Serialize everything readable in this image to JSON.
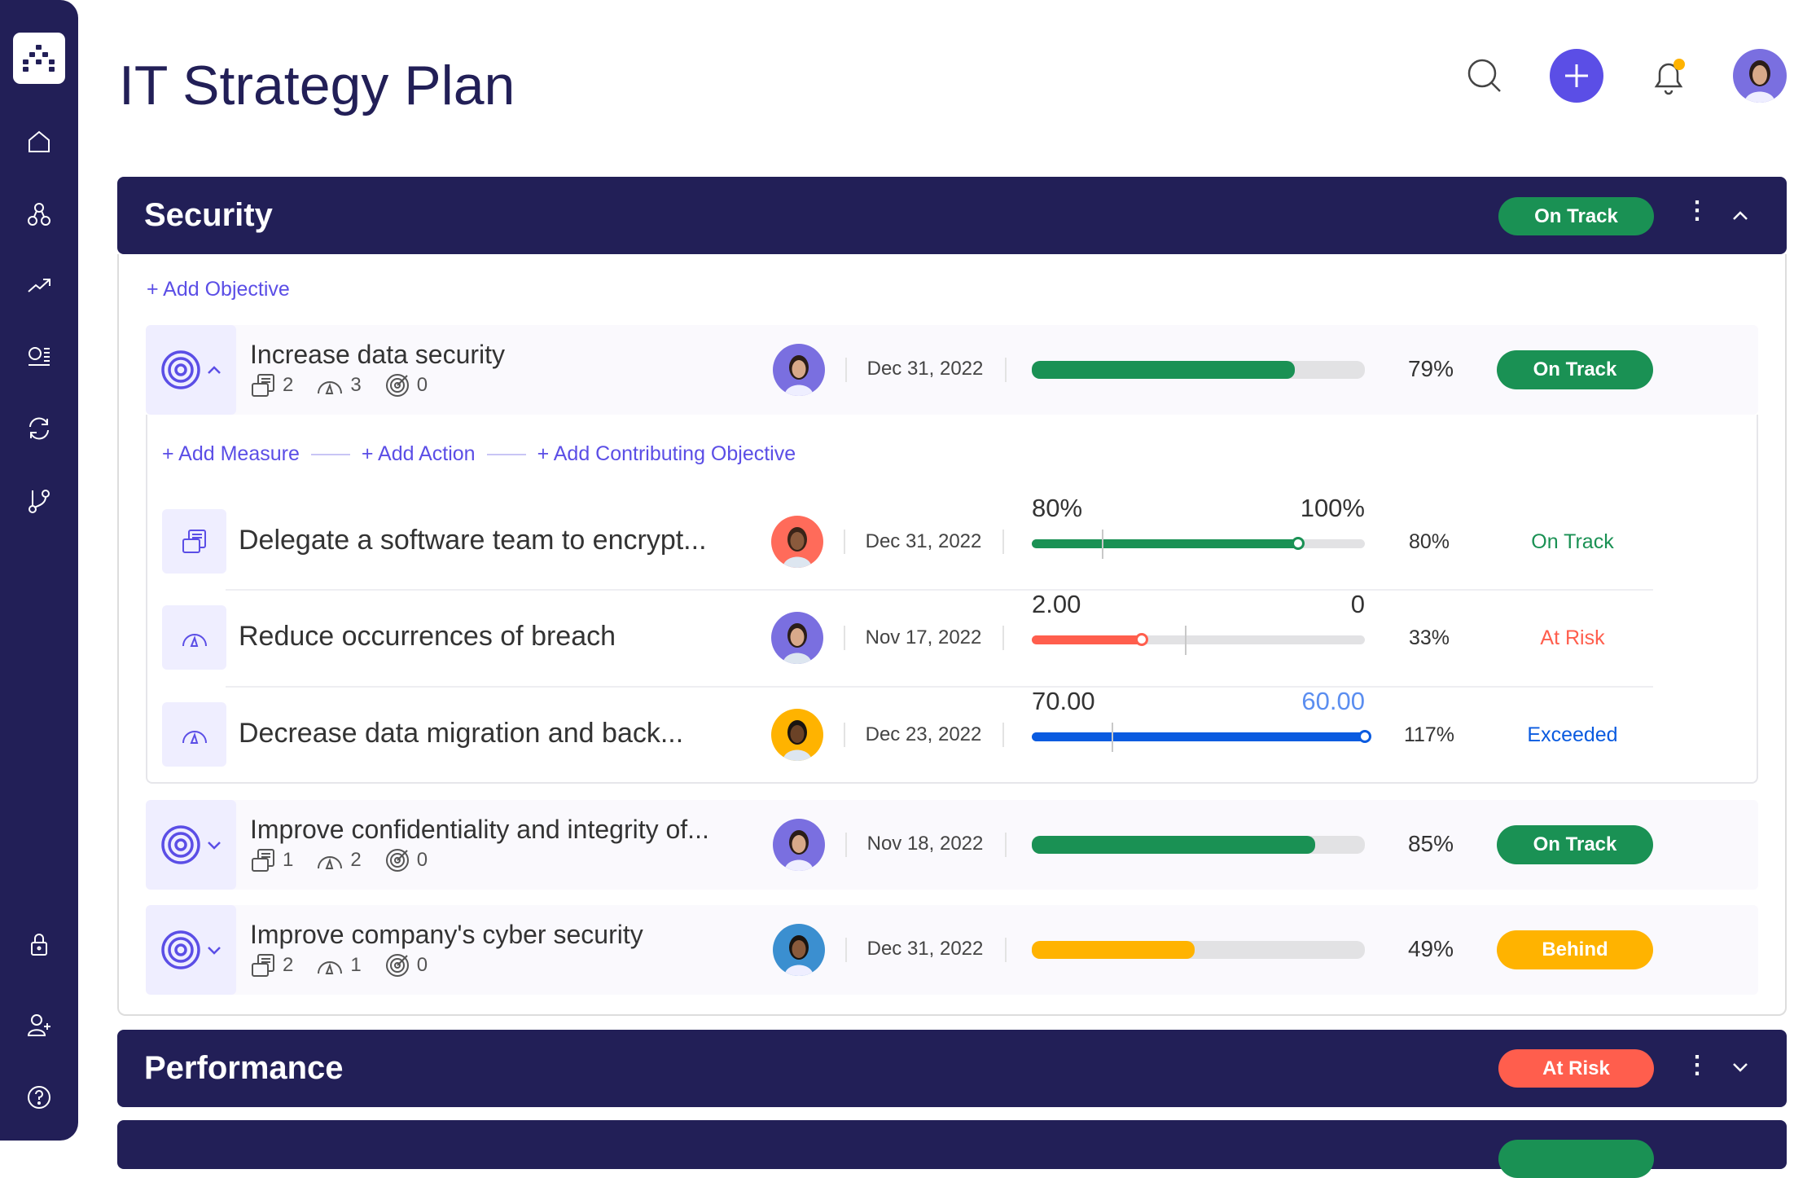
{
  "page_title": "IT Strategy Plan",
  "colors": {
    "navy": "#221f57",
    "accent": "#5b4ee6",
    "green": "#1a9154",
    "red": "#ff5e4d",
    "yellow": "#ffb300",
    "blue": "#0a5be0"
  },
  "sidebar": {
    "items": [
      "home-icon",
      "network-icon",
      "trending-icon",
      "list-icon",
      "refresh-icon",
      "branch-icon",
      "lock-icon",
      "add-user-icon",
      "help-icon"
    ]
  },
  "sections": [
    {
      "title": "Security",
      "status": "On Track",
      "add_objective": "+ Add Objective",
      "objectives": [
        {
          "title": "Increase data security",
          "counts": {
            "actions": "2",
            "measures": "3",
            "objectives": "0"
          },
          "date": "Dec 31, 2022",
          "progress": 79,
          "percent": "79%",
          "status": "On Track",
          "links": [
            "+ Add Measure",
            "+ Add Action",
            "+ Add Contributing Objective"
          ],
          "children": [
            {
              "title": "Delegate a software team to encrypt...",
              "date": "Dec 31, 2022",
              "start": "80%",
              "target": "100%",
              "fill": 80,
              "marker": 21,
              "percent": "80%",
              "status": "On Track"
            },
            {
              "title": "Reduce occurrences of breach",
              "date": "Nov 17, 2022",
              "start": "2.00",
              "target": "0",
              "fill": 33,
              "marker": 46,
              "percent": "33%",
              "status": "At Risk"
            },
            {
              "title": "Decrease data migration and back...",
              "date": "Dec 23, 2022",
              "start": "70.00",
              "target": "60.00",
              "fill": 100,
              "marker": 24,
              "percent": "117%",
              "status": "Exceeded"
            }
          ]
        },
        {
          "title": "Improve confidentiality and integrity of...",
          "counts": {
            "actions": "1",
            "measures": "2",
            "objectives": "0"
          },
          "date": "Nov 18, 2022",
          "progress": 85,
          "percent": "85%",
          "status": "On Track"
        },
        {
          "title": "Improve company's cyber security",
          "counts": {
            "actions": "2",
            "measures": "1",
            "objectives": "0"
          },
          "date": "Dec 31, 2022",
          "progress": 49,
          "percent": "49%",
          "status": "Behind"
        }
      ]
    },
    {
      "title": "Performance",
      "status": "At Risk"
    }
  ]
}
